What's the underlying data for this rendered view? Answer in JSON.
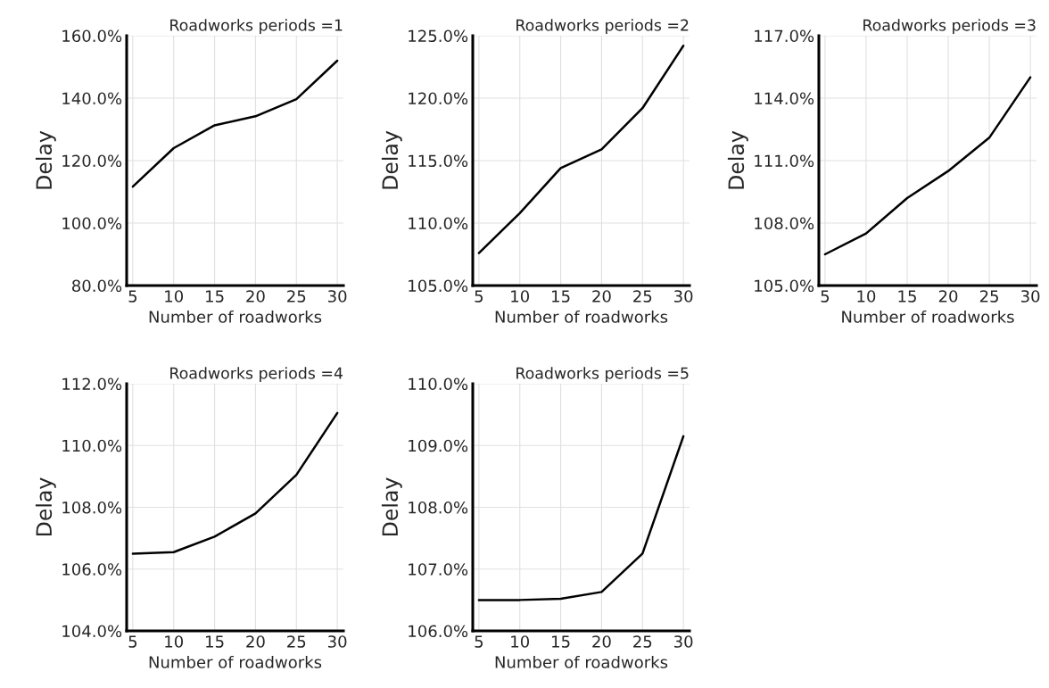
{
  "chart_data": [
    {
      "type": "line",
      "title": "Roadworks periods =1",
      "xlabel": "Number of roadworks",
      "ylabel": "Delay",
      "x": [
        5,
        10,
        15,
        20,
        25,
        30
      ],
      "series": [
        {
          "color": "#000000",
          "values": [
            111.7,
            124.0,
            131.3,
            134.2,
            139.7,
            152.0
          ]
        }
      ],
      "xlim": [
        4.25,
        30.75
      ],
      "xticks": [
        5,
        10,
        15,
        20,
        25,
        30
      ],
      "ylim": [
        80,
        160
      ],
      "yticks": [
        {
          "value": 80,
          "label": "80.0%"
        },
        {
          "value": 100,
          "label": "100.0%"
        },
        {
          "value": 120,
          "label": "120.0%"
        },
        {
          "value": 140,
          "label": "140.0%"
        },
        {
          "value": 160,
          "label": "160.0%"
        }
      ],
      "grid": true
    },
    {
      "type": "line",
      "title": "Roadworks periods =2",
      "xlabel": "Number of roadworks",
      "ylabel": "Delay",
      "x": [
        5,
        10,
        15,
        20,
        25,
        30
      ],
      "series": [
        {
          "color": "#000000",
          "values": [
            107.6,
            110.8,
            114.4,
            115.9,
            119.2,
            124.2
          ]
        }
      ],
      "xlim": [
        4.25,
        30.75
      ],
      "xticks": [
        5,
        10,
        15,
        20,
        25,
        30
      ],
      "ylim": [
        105,
        125
      ],
      "yticks": [
        {
          "value": 105,
          "label": "105.0%"
        },
        {
          "value": 110,
          "label": "110.0%"
        },
        {
          "value": 115,
          "label": "115.0%"
        },
        {
          "value": 120,
          "label": "120.0%"
        },
        {
          "value": 125,
          "label": "125.0%"
        }
      ],
      "grid": true
    },
    {
      "type": "line",
      "title": "Roadworks periods =3",
      "xlabel": "Number of roadworks",
      "ylabel": "Delay",
      "x": [
        5,
        10,
        15,
        20,
        25,
        30
      ],
      "series": [
        {
          "color": "#000000",
          "values": [
            106.5,
            107.5,
            109.2,
            110.5,
            112.1,
            115.0
          ]
        }
      ],
      "xlim": [
        4.25,
        30.75
      ],
      "xticks": [
        5,
        10,
        15,
        20,
        25,
        30
      ],
      "ylim": [
        105,
        117
      ],
      "yticks": [
        {
          "value": 105,
          "label": "105.0%"
        },
        {
          "value": 108,
          "label": "108.0%"
        },
        {
          "value": 111,
          "label": "111.0%"
        },
        {
          "value": 114,
          "label": "114.0%"
        },
        {
          "value": 117,
          "label": "117.0%"
        }
      ],
      "grid": true
    },
    {
      "type": "line",
      "title": "Roadworks periods =4",
      "xlabel": "Number of roadworks",
      "ylabel": "Delay",
      "x": [
        5,
        10,
        15,
        20,
        25,
        30
      ],
      "series": [
        {
          "color": "#000000",
          "values": [
            106.5,
            106.55,
            107.05,
            107.8,
            109.05,
            111.05
          ]
        }
      ],
      "xlim": [
        4.25,
        30.75
      ],
      "xticks": [
        5,
        10,
        15,
        20,
        25,
        30
      ],
      "ylim": [
        104,
        112
      ],
      "yticks": [
        {
          "value": 104,
          "label": "104.0%"
        },
        {
          "value": 106,
          "label": "106.0%"
        },
        {
          "value": 108,
          "label": "108.0%"
        },
        {
          "value": 110,
          "label": "110.0%"
        },
        {
          "value": 112,
          "label": "112.0%"
        }
      ],
      "grid": true
    },
    {
      "type": "line",
      "title": "Roadworks periods =5",
      "xlabel": "Number of roadworks",
      "ylabel": "Delay",
      "x": [
        5,
        10,
        15,
        20,
        25,
        30
      ],
      "series": [
        {
          "color": "#000000",
          "values": [
            106.5,
            106.5,
            106.52,
            106.63,
            107.25,
            109.15
          ]
        }
      ],
      "xlim": [
        4.25,
        30.75
      ],
      "xticks": [
        5,
        10,
        15,
        20,
        25,
        30
      ],
      "ylim": [
        106,
        110
      ],
      "yticks": [
        {
          "value": 106,
          "label": "106.0%"
        },
        {
          "value": 107,
          "label": "107.0%"
        },
        {
          "value": 108,
          "label": "108.0%"
        },
        {
          "value": 109,
          "label": "109.0%"
        },
        {
          "value": 110,
          "label": "110.0%"
        }
      ],
      "grid": true
    }
  ]
}
